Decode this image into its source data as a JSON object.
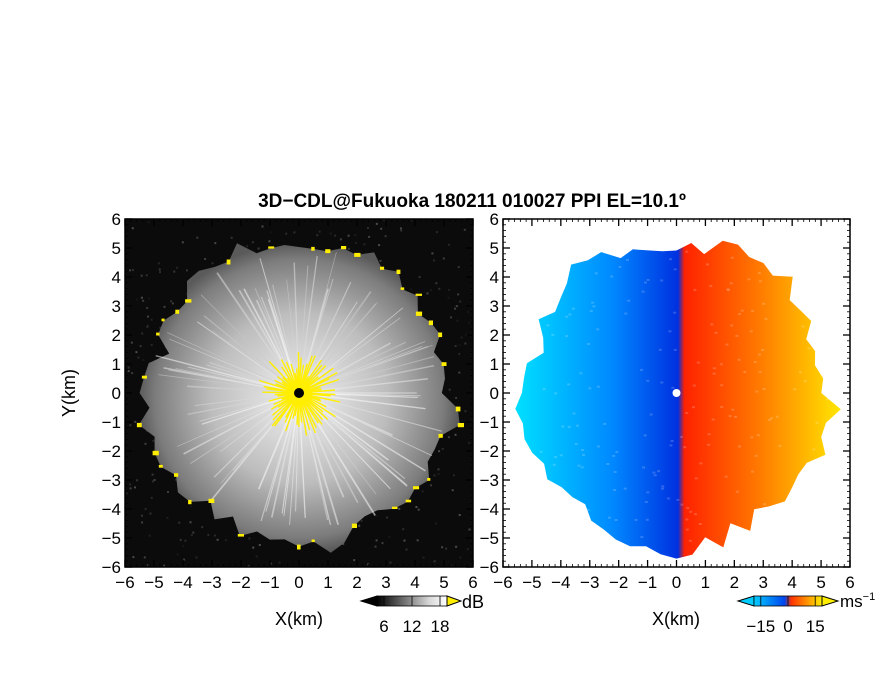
{
  "title": "3D−CDL@Fukuoka 180211 010027 PPI EL=10.1º",
  "colors": {
    "background": "#ffffff",
    "panel_left_bg": "#0b0b0b",
    "echo_yellow": "#ffee00",
    "center_dot": "#000000"
  },
  "chart_data": [
    {
      "type": "heatmap",
      "name": "reflectivity-panel",
      "xlabel": "X(km)",
      "ylabel": "Y(km)",
      "xlim": [
        -6,
        6
      ],
      "ylim": [
        -6,
        6
      ],
      "xticks": [
        -6,
        -5,
        -4,
        -3,
        -2,
        -1,
        0,
        1,
        2,
        3,
        4,
        5,
        6
      ],
      "yticks": [
        -6,
        -5,
        -4,
        -3,
        -2,
        -1,
        0,
        1,
        2,
        3,
        4,
        5,
        6
      ],
      "xtick_labels": [
        "−6",
        "−5",
        "−4",
        "−3",
        "−2",
        "−1",
        "0",
        "1",
        "2",
        "3",
        "4",
        "5",
        "6"
      ],
      "ytick_labels": [
        "−6",
        "−5",
        "−4",
        "−3",
        "−2",
        "−1",
        "0",
        "1",
        "2",
        "3",
        "4",
        "5",
        "6"
      ],
      "coverage_radius_km": 5.4,
      "colorbar": {
        "unit": "dB",
        "ticks": [
          6,
          12,
          18
        ],
        "tick_labels": [
          "6",
          "12",
          "18"
        ],
        "colors": [
          "#000000",
          "#404040",
          "#7a7a7a",
          "#b5b5b5",
          "#e8e8e8",
          "#ffee00"
        ]
      }
    },
    {
      "type": "heatmap",
      "name": "doppler-velocity-panel",
      "xlabel": "X(km)",
      "ylabel": "",
      "xlim": [
        -6,
        6
      ],
      "ylim": [
        -6,
        6
      ],
      "xticks": [
        -6,
        -5,
        -4,
        -3,
        -2,
        -1,
        0,
        1,
        2,
        3,
        4,
        5,
        6
      ],
      "yticks": [
        -6,
        -5,
        -4,
        -3,
        -2,
        -1,
        0,
        1,
        2,
        3,
        4,
        5,
        6
      ],
      "xtick_labels": [
        "−6",
        "−5",
        "−4",
        "−3",
        "−2",
        "−1",
        "0",
        "1",
        "2",
        "3",
        "4",
        "5",
        "6"
      ],
      "ytick_labels": [
        "−6",
        "−5",
        "−4",
        "−3",
        "−2",
        "−1",
        "0",
        "1",
        "2",
        "3",
        "4",
        "5",
        "6"
      ],
      "coverage_radius_km": 5.5,
      "colorbar": {
        "unit": "ms",
        "unit_exponent": "−1",
        "ticks": [
          -15,
          0,
          15
        ],
        "tick_labels": [
          "−15",
          "0",
          "15"
        ],
        "colors": [
          "#00ccff",
          "#0044ee",
          "#ff3300",
          "#ffee00"
        ]
      }
    }
  ]
}
